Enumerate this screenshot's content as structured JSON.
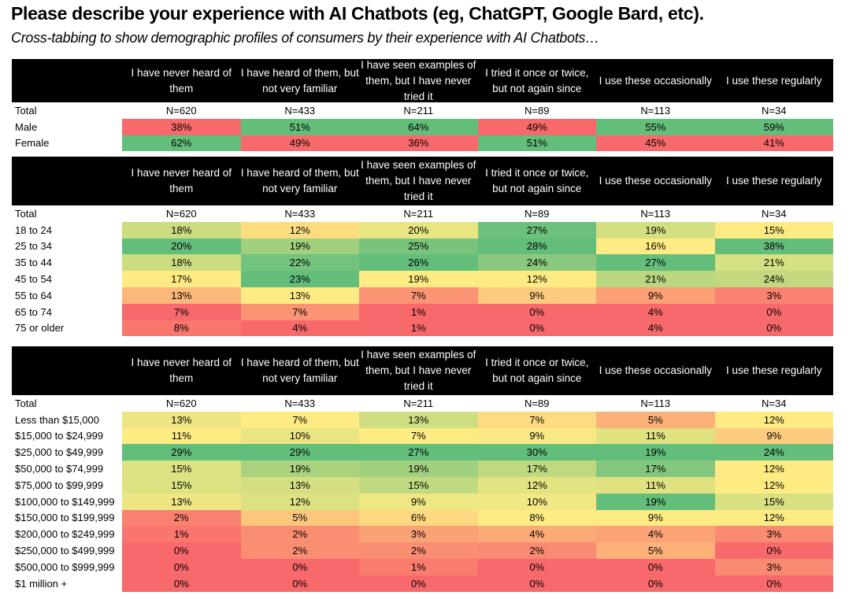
{
  "title": "Please describe your experience with AI Chatbots (eg, ChatGPT, Google Bard, etc).",
  "subtitle": "Cross-tabbing to show demographic profiles of consumers by their experience with AI Chatbots…",
  "colors": {
    "low": "#F8696B",
    "mid": "#FFEB84",
    "high": "#63BE7B",
    "header_bg": "#000000"
  },
  "chart_data": {
    "type": "table",
    "columns": [
      "I have never heard of them",
      "I have heard of them, but not very familiar",
      "I have seen examples of them, but I have never tried it",
      "I tried it once or twice, but not again since",
      "I use these occasionally",
      "I use these regularly"
    ],
    "total_label": "Total",
    "totals": [
      "N=620",
      "N=433",
      "N=211",
      "N=89",
      "N=113",
      "N=34"
    ],
    "sections": [
      {
        "name": "gender",
        "rows": [
          {
            "label": "Male",
            "values": [
              38,
              51,
              64,
              49,
              55,
              59
            ]
          },
          {
            "label": "Female",
            "values": [
              62,
              49,
              36,
              51,
              45,
              41
            ]
          }
        ]
      },
      {
        "name": "age",
        "rows": [
          {
            "label": "18 to 24",
            "values": [
              18,
              12,
              20,
              27,
              19,
              15
            ]
          },
          {
            "label": "25 to 34",
            "values": [
              20,
              19,
              25,
              28,
              16,
              38
            ]
          },
          {
            "label": "35 to 44",
            "values": [
              18,
              22,
              26,
              24,
              27,
              21
            ]
          },
          {
            "label": "45 to 54",
            "values": [
              17,
              23,
              19,
              12,
              21,
              24
            ]
          },
          {
            "label": "55 to 64",
            "values": [
              13,
              13,
              7,
              9,
              9,
              3
            ]
          },
          {
            "label": "65 to 74",
            "values": [
              7,
              7,
              1,
              0,
              4,
              0
            ]
          },
          {
            "label": "75 or older",
            "values": [
              8,
              4,
              1,
              0,
              4,
              0
            ]
          }
        ]
      },
      {
        "name": "income",
        "rows": [
          {
            "label": "Less than $15,000",
            "values": [
              13,
              7,
              13,
              7,
              5,
              12
            ]
          },
          {
            "label": "$15,000 to $24,999",
            "values": [
              11,
              10,
              7,
              9,
              11,
              9
            ]
          },
          {
            "label": "$25,000 to $49,999",
            "values": [
              29,
              29,
              27,
              30,
              19,
              24
            ]
          },
          {
            "label": "$50,000 to $74,999",
            "values": [
              15,
              19,
              19,
              17,
              17,
              12
            ]
          },
          {
            "label": "$75,000 to $99,999",
            "values": [
              15,
              13,
              15,
              12,
              11,
              12
            ]
          },
          {
            "label": "$100,000 to $149,999",
            "values": [
              13,
              12,
              9,
              10,
              19,
              15
            ]
          },
          {
            "label": "$150,000 to $199,999",
            "values": [
              2,
              5,
              6,
              8,
              9,
              12
            ]
          },
          {
            "label": "$200,000 to $249,999",
            "values": [
              1,
              2,
              3,
              4,
              4,
              3
            ]
          },
          {
            "label": "$250,000 to $499,999",
            "values": [
              0,
              2,
              2,
              2,
              5,
              0
            ]
          },
          {
            "label": "$500,000 to $999,999",
            "values": [
              0,
              0,
              1,
              0,
              0,
              3
            ]
          },
          {
            "label": "$1 million +",
            "values": [
              0,
              0,
              0,
              0,
              0,
              0
            ]
          }
        ]
      }
    ]
  }
}
